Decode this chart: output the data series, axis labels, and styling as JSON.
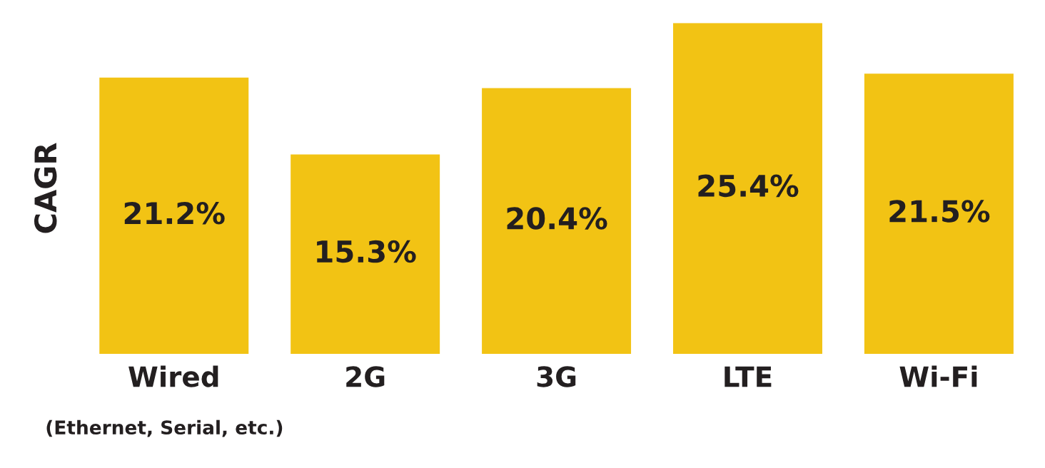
{
  "chart_data": {
    "type": "bar",
    "ylabel": "CAGR",
    "categories": [
      "Wired",
      "2G",
      "3G",
      "LTE",
      "Wi-Fi"
    ],
    "values": [
      21.2,
      15.3,
      20.4,
      25.4,
      21.5
    ],
    "value_labels": [
      "21.2%",
      "15.3%",
      "20.4%",
      "25.4%",
      "21.5%"
    ],
    "color": "#f2c314",
    "annotations": [
      "(Ethernet, Serial, etc.)"
    ],
    "grid": false,
    "legend": false
  }
}
